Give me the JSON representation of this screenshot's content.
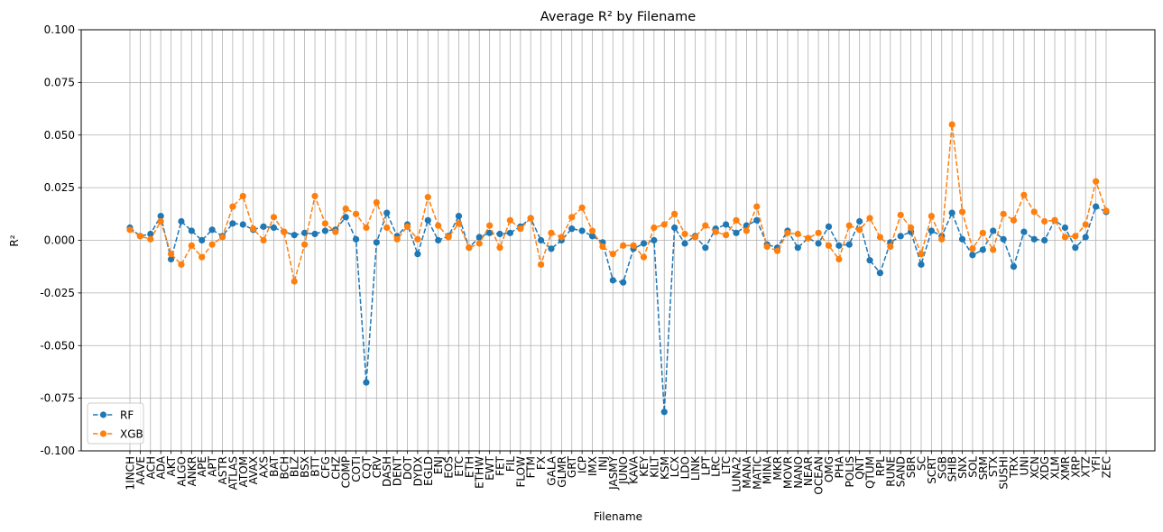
{
  "chart_data": {
    "type": "line",
    "title": "Average R² by Filename",
    "xlabel": "Filename",
    "ylabel": "R²",
    "ylim": [
      -0.1,
      0.1
    ],
    "yticks": [
      "-0.100",
      "-0.075",
      "-0.050",
      "-0.025",
      "0.000",
      "0.025",
      "0.050",
      "0.075",
      "0.100"
    ],
    "grid": true,
    "legend_position": "lower-left",
    "categories": [
      "1INCH",
      "AAVE",
      "ACH",
      "ADA",
      "AKT",
      "ALGO",
      "ANKR",
      "APE",
      "APT",
      "ASTR",
      "ATLAS",
      "ATOM",
      "AVAX",
      "AXS",
      "BAT",
      "BCH",
      "BLZ",
      "BSX",
      "BTT",
      "CFG",
      "CHZ",
      "COMP",
      "COTI",
      "CQT",
      "CRV",
      "DASH",
      "DENT",
      "DOT",
      "DYDX",
      "EGLD",
      "ENJ",
      "EOS",
      "ETC",
      "ETH",
      "ETHW",
      "EWT",
      "FET",
      "FIL",
      "FLOW",
      "FTM",
      "FX",
      "GALA",
      "GLMR",
      "GRT",
      "ICP",
      "IMX",
      "INJ",
      "JASMY",
      "JUNO",
      "KAVA",
      "KEY",
      "KILT",
      "KSM",
      "LCX",
      "LDO",
      "LINK",
      "LPT",
      "LRC",
      "LTC",
      "LUNA2",
      "MANA",
      "MATIC",
      "MINA",
      "MKR",
      "MOVR",
      "NANO",
      "NEAR",
      "OCEAN",
      "OMG",
      "PHA",
      "POLIS",
      "QNT",
      "QTUM",
      "RPL",
      "RUNE",
      "SAND",
      "SBR",
      "SC",
      "SCRT",
      "SGB",
      "SHIB",
      "SNX",
      "SOL",
      "SRM",
      "STX",
      "SUSHI",
      "TRX",
      "UNI",
      "XCN",
      "XDG",
      "XLM",
      "XMR",
      "XRP",
      "XTZ",
      "YFI",
      "ZEC"
    ],
    "series": [
      {
        "name": "RF",
        "color": "#1f77b4",
        "values": [
          0.006,
          0.002,
          0.003,
          0.0115,
          -0.009,
          0.009,
          0.0045,
          0.0,
          0.005,
          0.002,
          0.008,
          0.0075,
          0.005,
          0.0065,
          0.006,
          0.004,
          0.0025,
          0.0035,
          0.003,
          0.0045,
          0.005,
          0.011,
          0.0005,
          -0.0675,
          -0.001,
          0.013,
          0.002,
          0.0075,
          -0.0065,
          0.0095,
          0.0,
          0.002,
          0.0115,
          -0.0035,
          0.0015,
          0.0035,
          0.003,
          0.0035,
          0.0065,
          0.0105,
          0.0,
          -0.004,
          0.0,
          0.0055,
          0.0045,
          0.002,
          -0.001,
          -0.019,
          -0.02,
          -0.004,
          -0.0015,
          0.0,
          -0.0815,
          0.006,
          -0.0015,
          0.002,
          -0.0035,
          0.0055,
          0.0075,
          0.0035,
          0.007,
          0.0095,
          -0.002,
          -0.0035,
          0.0045,
          -0.0035,
          0.001,
          -0.0015,
          0.0065,
          -0.0025,
          -0.002,
          0.009,
          -0.0095,
          -0.0155,
          -0.001,
          0.002,
          0.004,
          -0.0115,
          0.0045,
          0.002,
          0.013,
          0.0005,
          -0.007,
          -0.0045,
          0.0045,
          0.0005,
          -0.0125,
          0.004,
          0.0005,
          0.0,
          0.0095,
          0.006,
          -0.0035,
          0.0015,
          0.016,
          0.0135
        ]
      },
      {
        "name": "XGB",
        "color": "#ff7f0e",
        "values": [
          0.005,
          0.002,
          0.0005,
          0.009,
          -0.0065,
          -0.0115,
          -0.0025,
          -0.008,
          -0.002,
          0.0015,
          0.016,
          0.021,
          0.0055,
          0.0,
          0.011,
          0.004,
          -0.0195,
          -0.002,
          0.021,
          0.008,
          0.004,
          0.015,
          0.0125,
          0.006,
          0.018,
          0.006,
          0.0005,
          0.0065,
          0.0005,
          0.0205,
          0.007,
          0.0015,
          0.008,
          -0.0035,
          -0.0015,
          0.007,
          -0.0035,
          0.0095,
          0.0055,
          0.0105,
          -0.0115,
          0.0035,
          0.0015,
          0.011,
          0.0155,
          0.0045,
          -0.003,
          -0.0065,
          -0.0025,
          -0.0025,
          -0.008,
          0.006,
          0.0075,
          0.0125,
          0.003,
          0.0015,
          0.007,
          0.004,
          0.0025,
          0.0095,
          0.0045,
          0.016,
          -0.003,
          -0.005,
          0.0035,
          0.003,
          0.001,
          0.0035,
          -0.0025,
          -0.009,
          0.007,
          0.005,
          0.0105,
          0.0015,
          -0.003,
          0.012,
          0.006,
          -0.0065,
          0.0115,
          0.0005,
          0.055,
          0.0135,
          -0.004,
          0.0035,
          -0.0045,
          0.0125,
          0.0095,
          0.0215,
          0.0135,
          0.009,
          0.0095,
          0.0015,
          0.002,
          0.0075,
          0.028,
          0.014
        ]
      }
    ]
  }
}
